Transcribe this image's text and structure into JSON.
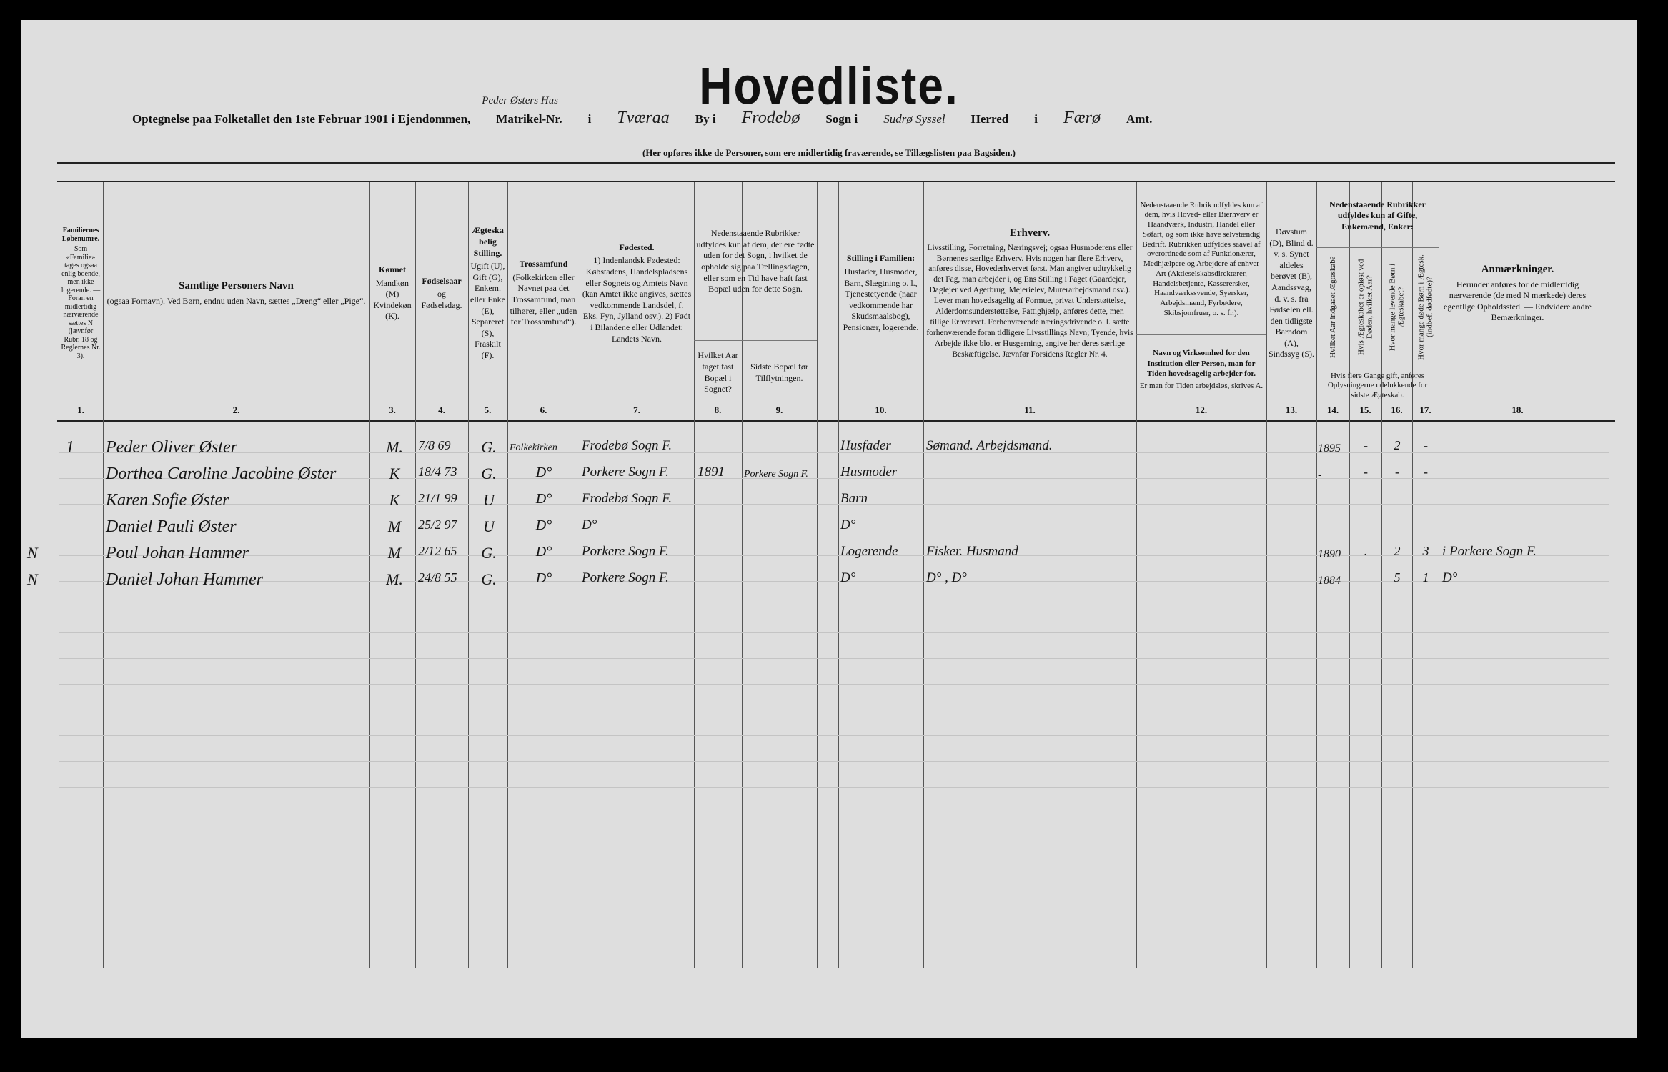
{
  "title": "Hovedliste.",
  "location": {
    "prefix": "Optegnelse paa Folketallet den 1ste Februar 1901 i Ejendommen,",
    "property_handwritten": "Peder Østers Hus",
    "struck_label": "Matrikel-Nr.",
    "i1": "i",
    "place": "Tværaa",
    "by_label": "By i",
    "parish": "Frodebø",
    "sogn_label": "Sogn i",
    "district": "Sudrø Syssel",
    "herred_label": "Herred",
    "i2": "i",
    "county": "Færø",
    "amt_label": "Amt."
  },
  "note": "(Her opføres ikke de Personer, som ere midlertidig fraværende, se Tillægslisten paa Bagsiden.)",
  "columns": [
    {
      "num": "1.",
      "head": "Familiernes Løbenumre.",
      "text": "Som «Familie» tages ogsaa enlig boende, men ikke logerende. — Foran en midlertidig nærværende sættes N (jævnfør Rubr. 18 og Reglernes Nr. 3)."
    },
    {
      "num": "2.",
      "head": "Samtlige Personers Navn",
      "text": "(ogsaa Fornavn). Ved Børn, endnu uden Navn, sættes „Dreng“ eller „Pige“."
    },
    {
      "num": "3.",
      "head": "Kønnet",
      "text": "Mandkøn (M) Kvindekøn (K)."
    },
    {
      "num": "4.",
      "head": "Fødselsaar",
      "text": "og Fødselsdag."
    },
    {
      "num": "5.",
      "head": "Ægteskabelig Stilling.",
      "text": "Ugift (U), Gift (G), Enkem. eller Enke (E), Separeret (S), Fraskilt (F)."
    },
    {
      "num": "6.",
      "head": "Trossamfund",
      "text": "(Folkekirken eller Navnet paa det Trossamfund, man tilhører, eller „uden for Trossamfund“)."
    },
    {
      "num": "7.",
      "head": "Fødested.",
      "text": "1) Indenlandsk Fødested: Købstadens, Handelspladsens eller Sognets og Amtets Navn (kan Amtet ikke angives, sættes vedkommende Landsdel, f. Eks. Fyn, Jylland osv.). 2) Født i Bilandene eller Udlandet: Landets Navn."
    },
    {
      "num": "8.",
      "head": "",
      "text": "Hvilket Aar taget fast Bopæl i Sognet?"
    },
    {
      "num": "9.",
      "head": "",
      "text": "Sidste Bopæl før Tilflytningen."
    },
    {
      "num": "10.",
      "head": "Stilling i Familien:",
      "text": "Husfader, Husmoder, Barn, Slægtning o. l., Tjenestetyende (naar vedkommende har Skudsmaalsbog), Pensionær, logerende."
    },
    {
      "num": "11.",
      "head": "Erhverv.",
      "text": "Livsstilling, Forretning, Næringsvej; ogsaa Husmoderens eller Børnenes særlige Erhverv. Hvis nogen har flere Erhverv, anføres disse, Hovederhvervet først. Man angiver udtrykkelig det Fag, man arbejder i, og Ens Stilling i Faget (Gaardejer, Daglejer ved Agerbrug, Mejerielev, Murerarbejdsmand osv.). Lever man hovedsagelig af Formue, privat Understøttelse, Alderdomsunderstøttelse, Fattighjælp, anføres dette, men tillige Erhvervet. Forhenværende næringsdrivende o. l. sætte forhenværende foran tidligere Livsstillings Navn; Tyende, hvis Arbejde ikke blot er Husgerning, angive her deres særlige Beskæftigelse. Jævnfør Forsidens Regler Nr. 4."
    },
    {
      "num": "12.",
      "head": "Navn og Virksomhed for den Institution eller Person, man for Tiden hovedsagelig arbejder for.",
      "text": "Er man for Tiden arbejdsløs, skrives A."
    },
    {
      "num": "13.",
      "head": "",
      "text": "Døvstum (D), Blind d. v. s. Synet aldeles berøvet (B), Aandssvag, d. v. s. fra Fødselen ell. den tidligste Barndom (A), Sindssyg (S)."
    },
    {
      "num": "14.",
      "head": "",
      "text": "Hvilket Aar indgaaet Ægteskab?"
    },
    {
      "num": "15.",
      "head": "",
      "text": "Hvis Ægteskabet er opløst ved Døden, hvilket Aar?"
    },
    {
      "num": "16.",
      "head": "",
      "text": "Hvor mange levende Børn i Ægteskabet?"
    },
    {
      "num": "17.",
      "head": "",
      "text": "Hvor mange døde Børn i Ægtesk. (indbef. dødfødte)?"
    },
    {
      "num": "18.",
      "head": "Anmærkninger.",
      "text": "Herunder anføres for de midlertidig nærværende (de med N mærkede) deres egentlige Opholdssted. — Endvidere andre Bemærkninger."
    }
  ],
  "col8_9_group": "Nedenstaaende Rubrikker udfyldes kun af dem, der ere fødte uden for det Sogn, i hvilket de opholde sig paa Tællingsdagen, eller som en Tid have haft fast Bopæl uden for dette Sogn.",
  "col12_group": "Nedenstaaende Rubrik udfyldes kun af dem, hvis Hoved- eller Bierhverv er Haandværk, Industri, Handel eller Søfart, og som ikke have selvstændig Bedrift. Rubrikken udfyldes saavel af overordnede som af Funktionærer, Medhjælpere og Arbejdere af enhver Art (Aktieselskabsdirektører, Handelsbetjente, Kasserersker, Haandværkssvende, Syersker, Arbejdsmænd, Fyrbødere, Skibsjomfruer, o. s. fr.).",
  "col14_17_group": "Nedenstaaende Rubrikker udfyldes kun af Gifte, Enkemænd, Enker:",
  "col14_17_foot": "Hvis flere Gange gift, anføres Oplysningerne udelukkende for sidste Ægteskab.",
  "rows": [
    {
      "mark": "",
      "fam": "1",
      "name": "Peder Oliver Øster",
      "sex": "M.",
      "born": "7/8 69",
      "civil": "G.",
      "faith": "Folkekirken",
      "birthplace": "Frodebø Sogn F.",
      "year": "",
      "last": "",
      "role": "Husfader",
      "occupation": "Sømand. Arbejdsmand.",
      "c14": "1895",
      "c15": "-",
      "c16": "2",
      "c17": "-",
      "remark": ""
    },
    {
      "mark": "",
      "fam": "",
      "name": "Dorthea Caroline Jacobine Øster",
      "sex": "K",
      "born": "18/4 73",
      "civil": "G.",
      "faith": "D°",
      "birthplace": "Porkere Sogn F.",
      "year": "1891",
      "last": "Porkere Sogn F.",
      "role": "Husmoder",
      "occupation": "",
      "c14": "-",
      "c15": "-",
      "c16": "-",
      "c17": "-",
      "remark": ""
    },
    {
      "mark": "",
      "fam": "",
      "name": "Karen Sofie Øster",
      "sex": "K",
      "born": "21/1 99",
      "civil": "U",
      "faith": "D°",
      "birthplace": "Frodebø Sogn F.",
      "year": "",
      "last": "",
      "role": "Barn",
      "occupation": "",
      "c14": "",
      "c15": "",
      "c16": "",
      "c17": "",
      "remark": ""
    },
    {
      "mark": "",
      "fam": "",
      "name": "Daniel Pauli Øster",
      "sex": "M",
      "born": "25/2 97",
      "civil": "U",
      "faith": "D°",
      "birthplace": "D°",
      "year": "",
      "last": "",
      "role": "D°",
      "occupation": "",
      "c14": "",
      "c15": "",
      "c16": "",
      "c17": "",
      "remark": ""
    },
    {
      "mark": "N",
      "fam": "",
      "name": "Poul Johan Hammer",
      "sex": "M",
      "born": "2/12 65",
      "civil": "G.",
      "faith": "D°",
      "birthplace": "Porkere Sogn F.",
      "year": "",
      "last": "",
      "role": "Logerende",
      "occupation": "Fisker. Husmand",
      "c14": "1890",
      "c15": ".",
      "c16": "2",
      "c17": "3",
      "remark": "i Porkere Sogn F."
    },
    {
      "mark": "N",
      "fam": "",
      "name": "Daniel Johan Hammer",
      "sex": "M.",
      "born": "24/8 55",
      "civil": "G.",
      "faith": "D°",
      "birthplace": "Porkere Sogn F.",
      "year": "",
      "last": "",
      "role": "D°",
      "occupation": "D° , D°",
      "c14": "1884",
      "c15": "",
      "c16": "5",
      "c17": "1",
      "remark": "D°"
    }
  ]
}
